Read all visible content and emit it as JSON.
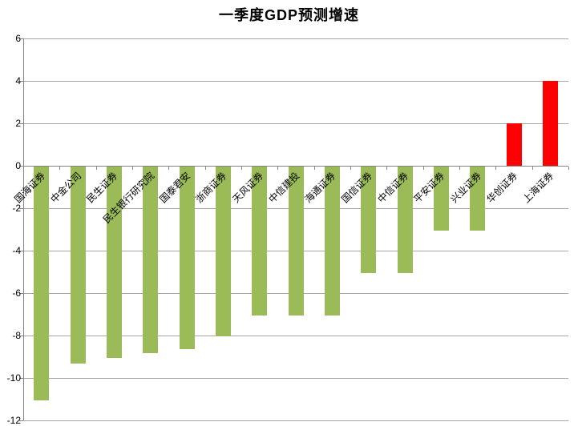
{
  "chart_data": {
    "type": "bar",
    "title": "一季度GDP预测增速",
    "categories": [
      "国海证券",
      "中金公司",
      "民生证券",
      "民生银行研究院",
      "国泰君安",
      "浙商证券",
      "天风证券",
      "中信建投",
      "海通证券",
      "国信证券",
      "中信证券",
      "平安证券",
      "兴业证券",
      "华创证券",
      "上海证券"
    ],
    "values": [
      -11,
      -9.3,
      -9,
      -8.8,
      -8.6,
      -8,
      -7,
      -7,
      -7,
      -5,
      -5,
      -3,
      -3,
      2,
      4
    ],
    "xlabel": "",
    "ylabel": "",
    "ylim": [
      -12,
      6
    ],
    "yticks": [
      6,
      4,
      2,
      0,
      -2,
      -4,
      -6,
      -8,
      -10,
      -12
    ],
    "grid": true,
    "legend_position": "none",
    "colors": {
      "positive_bar": "#FF0000",
      "negative_bar": "#9BBB59",
      "gridline": "#A6A6A6",
      "axis": "#848484",
      "text": "#000000",
      "background": "#FFFFFF"
    }
  }
}
